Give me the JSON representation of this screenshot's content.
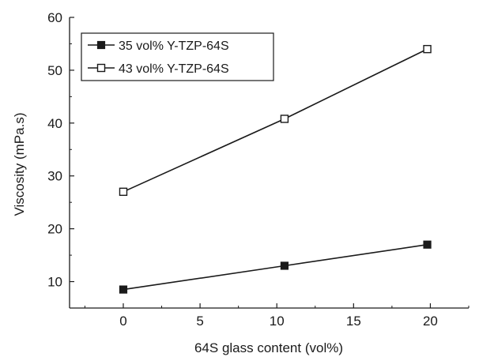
{
  "chart_data": {
    "type": "line",
    "title": "",
    "xlabel": "64S glass content (vol%)",
    "ylabel": "Viscosity (mPa.s)",
    "xlim": [
      -3.5,
      22.5
    ],
    "ylim": [
      5,
      60
    ],
    "xticks": [
      0,
      5,
      10,
      15,
      20
    ],
    "yticks": [
      10,
      20,
      30,
      40,
      50,
      60
    ],
    "x_tick_labels": [
      "0",
      "5",
      "10",
      "15",
      "20"
    ],
    "y_tick_labels": [
      "10",
      "20",
      "30",
      "40",
      "50",
      "60"
    ],
    "grid": false,
    "legend_position": "top-left",
    "series": [
      {
        "name": "35 vol% Y-TZP-64S",
        "marker": "filled-square",
        "color": "#1a1a1a",
        "x": [
          0,
          10.5,
          19.8
        ],
        "y": [
          8.5,
          13.0,
          17.0
        ]
      },
      {
        "name": "43 vol% Y-TZP-64S",
        "marker": "open-square",
        "color": "#1a1a1a",
        "x": [
          0,
          10.5,
          19.8
        ],
        "y": [
          27.0,
          40.8,
          54.0
        ]
      }
    ]
  }
}
